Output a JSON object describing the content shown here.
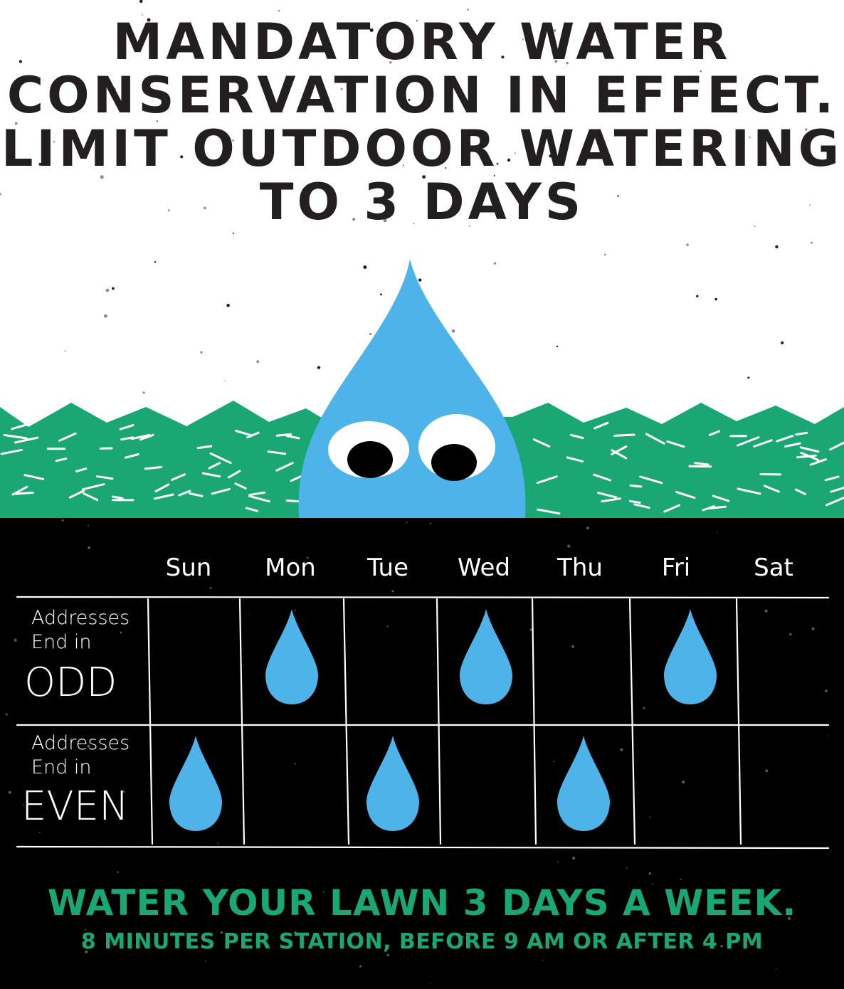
{
  "headline": {
    "lines": [
      "MANDATORY WATER",
      "CONSERVATION IN EFFECT.",
      "LIMIT OUTDOOR WATERING",
      "TO 3 DAYS"
    ]
  },
  "colors": {
    "drop_blue": "#4db3e9",
    "grass_green": "#1aa774",
    "ink": "#231f20",
    "board": "#000000",
    "chalk": "#ffffff"
  },
  "mascot": {
    "icon": "water-drop-mascot-icon"
  },
  "schedule": {
    "days": [
      "Sun",
      "Mon",
      "Tue",
      "Wed",
      "Thu",
      "Fri",
      "Sat"
    ],
    "rows": [
      {
        "label_top": "Addresses",
        "label_mid": "End in",
        "label_big": "ODD",
        "watering_days": [
          "Mon",
          "Wed",
          "Fri"
        ]
      },
      {
        "label_top": "Addresses",
        "label_mid": "End in",
        "label_big": "EVEN",
        "watering_days": [
          "Sun",
          "Tue",
          "Thu"
        ]
      }
    ],
    "mark_icon": "water-drop-icon"
  },
  "footer": {
    "main": "WATER YOUR LAWN 3 DAYS A WEEK.",
    "sub": "8 MINUTES PER STATION, BEFORE 9 AM OR AFTER 4 PM"
  }
}
